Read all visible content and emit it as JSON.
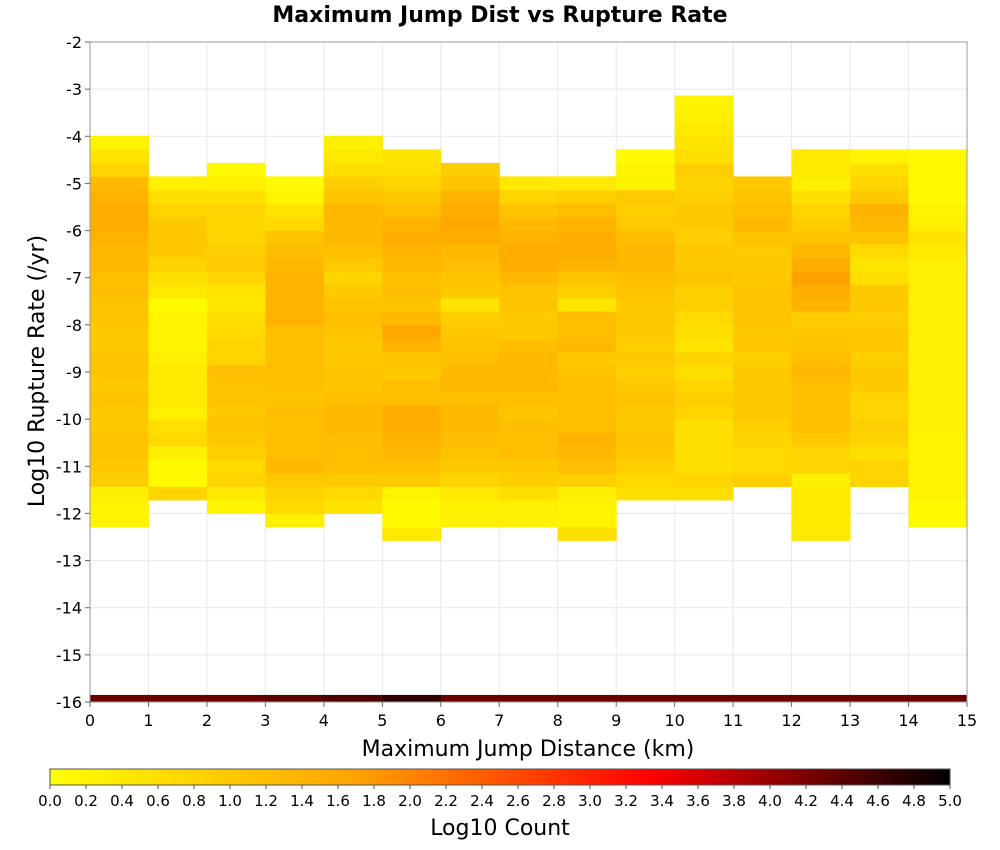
{
  "chart_data": {
    "type": "heatmap",
    "title": "Maximum Jump Dist vs Rupture Rate",
    "xlabel": "Maximum Jump Distance (km)",
    "ylabel": "Log10 Rupture Rate (/yr)",
    "colorbar_label": "Log10 Count",
    "xlim": [
      0,
      15
    ],
    "ylim": [
      -16,
      -2
    ],
    "x_ticks": [
      "0",
      "1",
      "2",
      "3",
      "4",
      "5",
      "6",
      "7",
      "8",
      "9",
      "10",
      "11",
      "12",
      "13",
      "14",
      "15"
    ],
    "y_ticks": [
      "-2",
      "-3",
      "-4",
      "-5",
      "-6",
      "-7",
      "-8",
      "-9",
      "-10",
      "-11",
      "-12",
      "-13",
      "-14",
      "-15",
      "-16"
    ],
    "colorbar_range": [
      0.0,
      5.0
    ],
    "colorbar_ticks": [
      "0.0",
      "0.2",
      "0.4",
      "0.6",
      "0.8",
      "1.0",
      "1.2",
      "1.4",
      "1.6",
      "1.8",
      "2.0",
      "2.2",
      "2.4",
      "2.6",
      "2.8",
      "3.0",
      "3.2",
      "3.4",
      "3.6",
      "3.8",
      "4.0",
      "4.2",
      "4.4",
      "4.6",
      "4.8",
      "5.0"
    ],
    "colormap": [
      "#ffff00",
      "#ffa500",
      "#ff0000",
      "#000000"
    ],
    "x_bin_width": 1,
    "y_bin_height": 0.286,
    "y_bin_start": -12.286,
    "columns": [
      {
        "x": 0,
        "bin_start": -12.286,
        "values": [
          0.2,
          0.2,
          0.3,
          0.9,
          1.0,
          1.1,
          1.1,
          1.0,
          1.0,
          1.1,
          1.0,
          1.1,
          1.1,
          1.0,
          1.0,
          1.1,
          1.1,
          1.2,
          1.2,
          1.3,
          1.3,
          1.4,
          1.5,
          1.5,
          1.4,
          1.3,
          0.8,
          0.5,
          0.2
        ]
      },
      {
        "x": 1,
        "bin_start": -11.714,
        "values": [
          0.8,
          0.1,
          0.1,
          0.3,
          0.7,
          0.6,
          0.3,
          0.4,
          0.4,
          0.4,
          0.3,
          0.2,
          0.2,
          0.2,
          0.1,
          0.4,
          0.6,
          0.8,
          1.0,
          1.0,
          1.0,
          0.8,
          0.6,
          0.3
        ]
      },
      {
        "x": 2,
        "bin_start": -12.0,
        "values": [
          0.2,
          0.4,
          0.8,
          0.7,
          0.9,
          1.0,
          1.1,
          1.0,
          1.1,
          1.1,
          1.2,
          0.8,
          0.8,
          0.7,
          0.6,
          0.4,
          0.5,
          0.8,
          1.0,
          0.9,
          0.8,
          0.7,
          0.8,
          0.6,
          0.3,
          0.1
        ]
      },
      {
        "x": 3,
        "bin_start": -12.286,
        "values": [
          0.3,
          0.7,
          0.8,
          1.0,
          1.3,
          1.2,
          1.2,
          1.2,
          1.2,
          1.1,
          1.2,
          1.2,
          1.2,
          1.2,
          1.2,
          1.4,
          1.4,
          1.4,
          1.4,
          1.3,
          1.2,
          1.1,
          0.7,
          0.5,
          0.2,
          0.1
        ]
      },
      {
        "x": 4,
        "bin_start": -12.0,
        "values": [
          0.5,
          0.7,
          1.0,
          1.2,
          1.2,
          1.2,
          1.3,
          1.3,
          1.2,
          1.1,
          1.1,
          1.0,
          1.0,
          1.1,
          1.2,
          1.1,
          1.0,
          0.8,
          1.0,
          1.2,
          1.3,
          1.3,
          1.3,
          1.1,
          0.9,
          0.6,
          0.4,
          0.3
        ]
      },
      {
        "x": 5,
        "bin_start": -12.571,
        "values": [
          0.4,
          0.1,
          0.1,
          0.2,
          1.0,
          1.2,
          1.3,
          1.4,
          1.5,
          1.5,
          1.2,
          1.2,
          1.0,
          1.1,
          1.4,
          1.6,
          1.3,
          1.1,
          1.2,
          1.2,
          1.3,
          1.4,
          1.5,
          1.4,
          1.2,
          1.0,
          0.8,
          0.6,
          0.5
        ]
      },
      {
        "x": 6,
        "bin_start": -12.286,
        "values": [
          0.3,
          0.3,
          0.4,
          0.8,
          1.0,
          1.1,
          1.2,
          1.3,
          1.3,
          1.2,
          1.3,
          1.3,
          1.2,
          1.1,
          1.0,
          0.9,
          0.5,
          1.0,
          1.1,
          1.2,
          1.3,
          1.5,
          1.6,
          1.5,
          1.4,
          1.1,
          0.9
        ]
      },
      {
        "x": 7,
        "bin_start": -12.286,
        "values": [
          0.3,
          0.3,
          0.6,
          0.9,
          1.0,
          1.2,
          1.2,
          1.2,
          1.1,
          1.2,
          1.3,
          1.3,
          1.3,
          1.2,
          1.0,
          1.0,
          1.1,
          1.1,
          1.3,
          1.5,
          1.5,
          1.4,
          1.3,
          1.1,
          0.8,
          0.4
        ]
      },
      {
        "x": 8,
        "bin_start": -12.571,
        "values": [
          0.6,
          0.2,
          0.2,
          0.3,
          0.9,
          1.2,
          1.3,
          1.4,
          1.2,
          1.2,
          1.2,
          1.2,
          1.1,
          1.0,
          1.3,
          1.2,
          1.2,
          0.5,
          0.9,
          1.1,
          1.4,
          1.5,
          1.5,
          1.4,
          1.2,
          0.9,
          0.4
        ]
      },
      {
        "x": 9,
        "bin_start": -11.714,
        "values": [
          0.6,
          0.7,
          0.9,
          1.0,
          1.1,
          1.0,
          1.0,
          1.1,
          1.0,
          0.9,
          1.0,
          0.9,
          1.0,
          1.0,
          1.0,
          1.1,
          1.2,
          1.3,
          1.3,
          1.2,
          1.0,
          0.9,
          1.0,
          0.2,
          0.2,
          0.1
        ]
      },
      {
        "x": 10,
        "bin_start": -11.714,
        "values": [
          0.6,
          0.8,
          0.6,
          0.6,
          0.6,
          0.6,
          0.8,
          0.9,
          0.8,
          0.6,
          0.8,
          0.5,
          0.6,
          0.7,
          0.9,
          0.9,
          1.1,
          1.0,
          1.0,
          0.9,
          1.0,
          1.0,
          0.9,
          0.8,
          0.9,
          0.6,
          0.5,
          0.4,
          0.3,
          0.2
        ]
      },
      {
        "x": 11,
        "bin_start": -11.429,
        "values": [
          0.9,
          0.7,
          0.7,
          0.8,
          0.9,
          1.0,
          1.0,
          1.0,
          1.0,
          0.9,
          1.0,
          1.0,
          1.1,
          1.1,
          1.1,
          1.0,
          1.0,
          1.0,
          1.1,
          1.3,
          1.2,
          1.1,
          1.0
        ]
      },
      {
        "x": 12,
        "bin_start": -12.571,
        "values": [
          0.4,
          0.4,
          0.4,
          0.4,
          0.3,
          0.8,
          0.8,
          1.0,
          1.2,
          1.2,
          1.2,
          1.2,
          1.3,
          1.2,
          1.1,
          1.0,
          0.9,
          1.4,
          1.5,
          1.7,
          1.5,
          1.3,
          1.1,
          0.9,
          0.8,
          0.6,
          0.3,
          0.4,
          0.4
        ]
      },
      {
        "x": 13,
        "bin_start": -11.429,
        "values": [
          0.8,
          0.8,
          0.6,
          0.8,
          0.9,
          0.8,
          0.8,
          1.0,
          1.0,
          0.9,
          1.0,
          1.0,
          0.9,
          1.0,
          1.0,
          0.6,
          0.5,
          0.7,
          1.1,
          1.3,
          1.4,
          1.0,
          0.8,
          0.6,
          0.2
        ]
      },
      {
        "x": 14,
        "bin_start": -12.286,
        "values": [
          0.1,
          0.1,
          0.2,
          0.2,
          0.2,
          0.2,
          0.2,
          0.3,
          0.3,
          0.3,
          0.3,
          0.3,
          0.3,
          0.3,
          0.3,
          0.3,
          0.3,
          0.3,
          0.3,
          0.3,
          0.4,
          0.5,
          0.3,
          0.2,
          0.1,
          0.1,
          0.1,
          0.1
        ]
      }
    ],
    "bottom_row": {
      "bin_start": -16.0,
      "values": [
        4.3,
        4.3,
        4.3,
        4.4,
        4.5,
        4.7,
        4.3,
        4.3,
        4.3,
        4.3,
        4.3,
        4.3,
        4.3,
        4.3,
        4.3
      ]
    }
  }
}
